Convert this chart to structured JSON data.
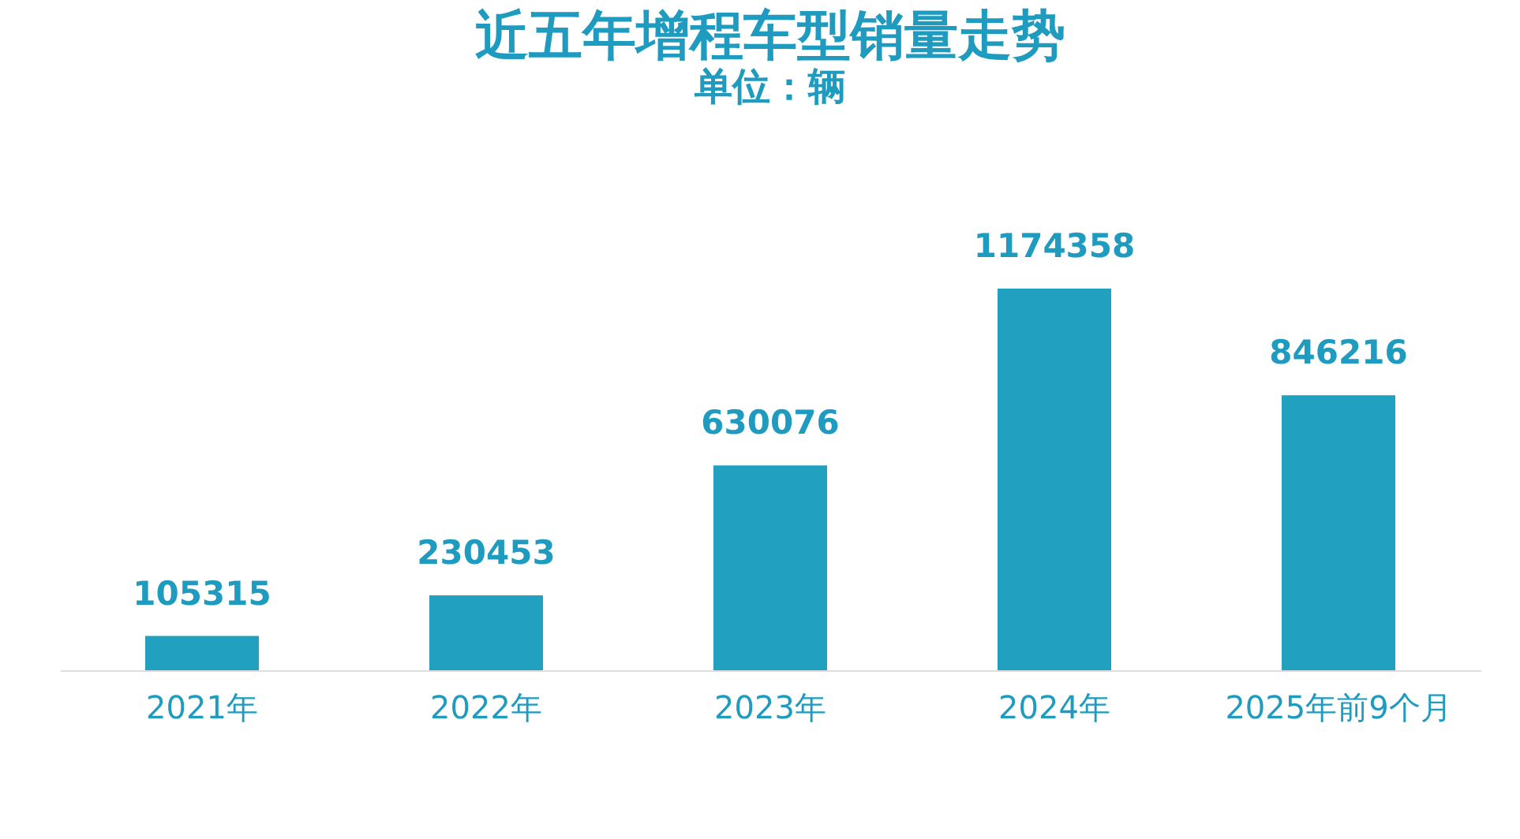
{
  "chart_data": {
    "type": "bar",
    "title": "近五年增程车型销量走势",
    "subtitle": "单位：辆",
    "categories": [
      "2021年",
      "2022年",
      "2023年",
      "2024年",
      "2025年前9个月"
    ],
    "values": [
      105315,
      230453,
      630076,
      1174358,
      846216
    ],
    "color": "#21a0bf",
    "data_labels": true
  }
}
